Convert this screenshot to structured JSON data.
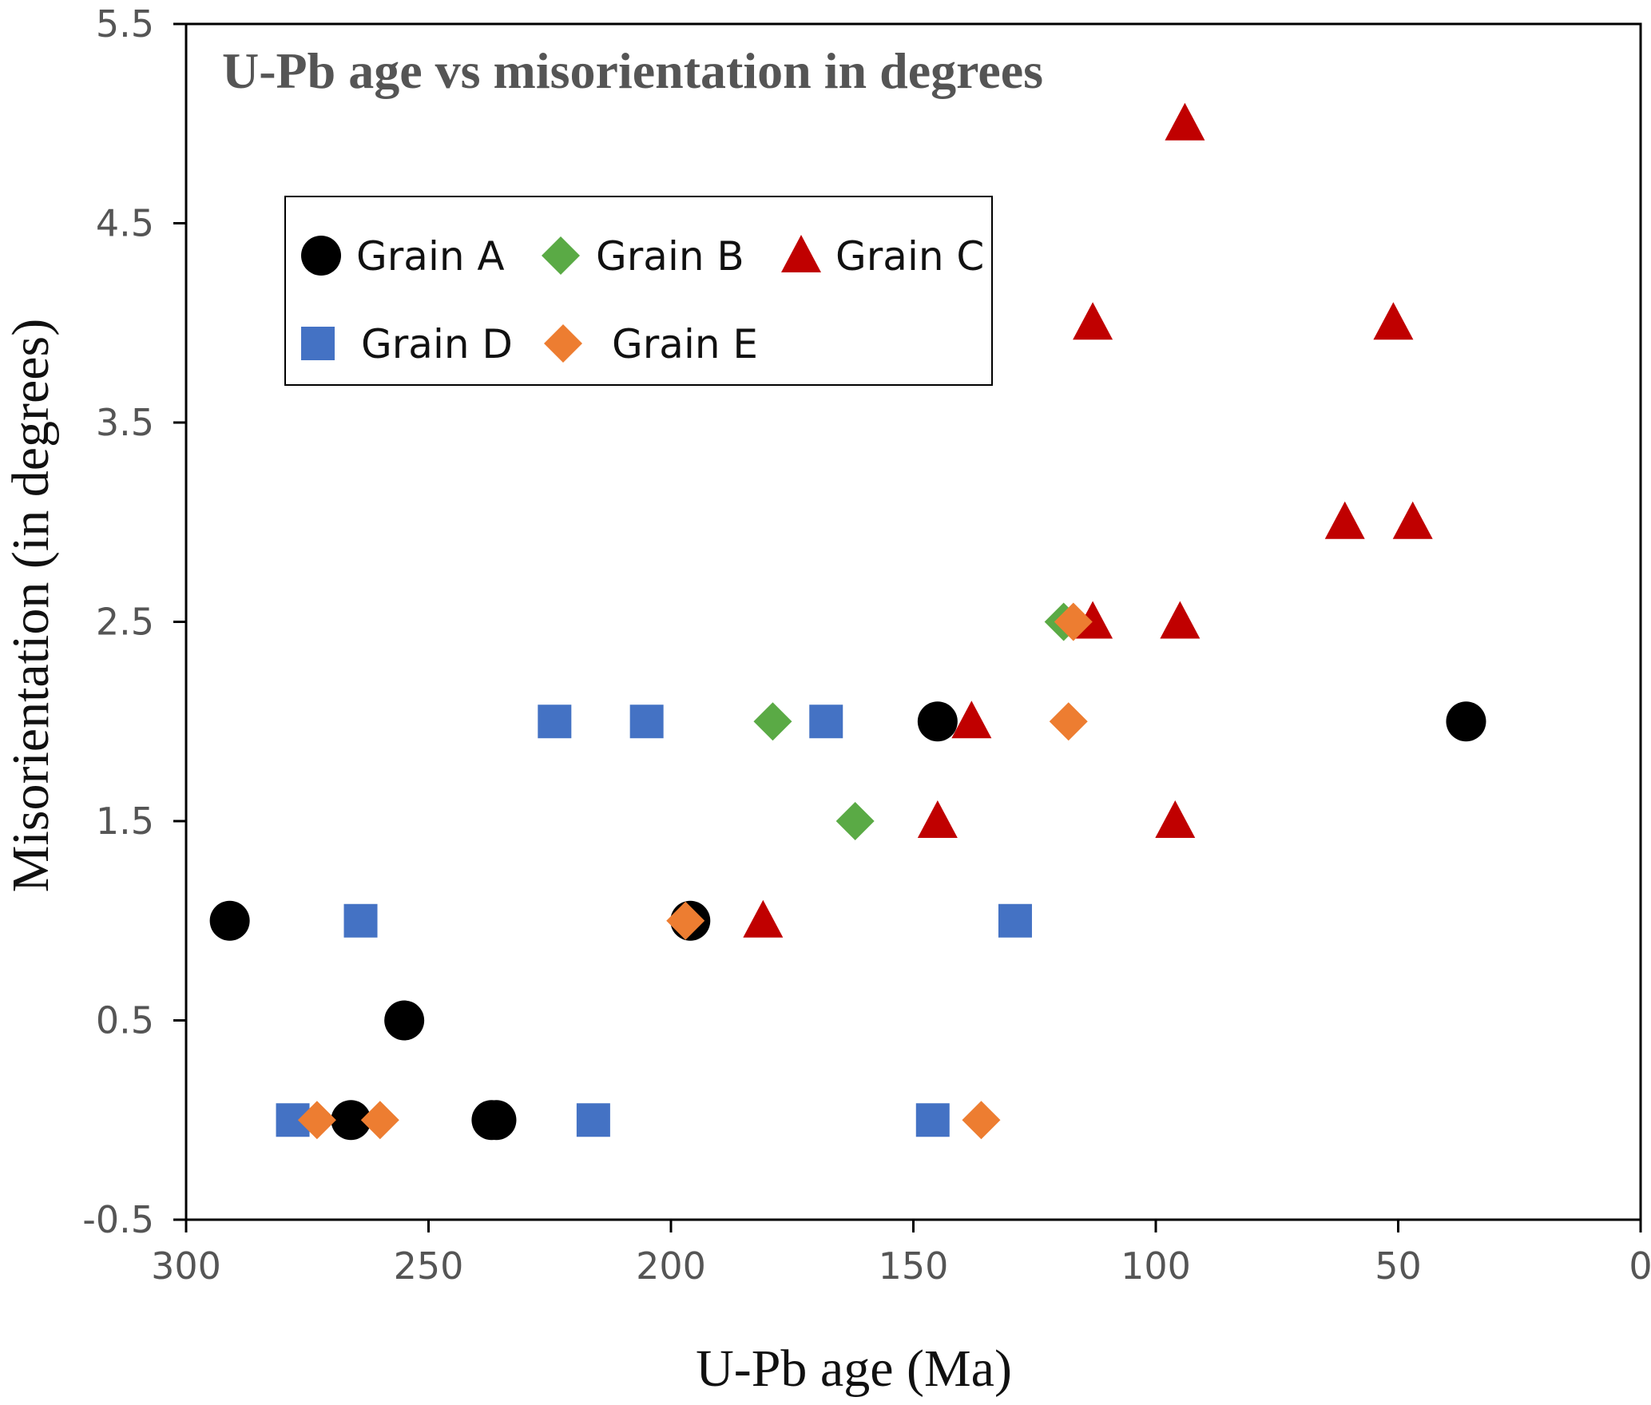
{
  "chart_data": {
    "type": "scatter",
    "title": "U-Pb age vs misorientation in degrees",
    "xlabel": "U-Pb age (Ma)",
    "ylabel": "Misorientation (in degrees)",
    "xlim": [
      300,
      0
    ],
    "ylim": [
      -0.5,
      5.5
    ],
    "x_reversed": true,
    "x_ticks": [
      300,
      250,
      200,
      150,
      100,
      50,
      0
    ],
    "y_ticks": [
      -0.5,
      0.5,
      1.5,
      2.5,
      3.5,
      4.5,
      5.5
    ],
    "x_tick_labels": [
      "300",
      "250",
      "200",
      "150",
      "100",
      "50",
      "0"
    ],
    "y_tick_labels": [
      "-0.5",
      "0.5",
      "1.5",
      "2.5",
      "3.5",
      "4.5",
      "5.5"
    ],
    "grid": false,
    "legend_position": "upper-left",
    "series": [
      {
        "name": "Grain A",
        "marker": "circle",
        "color": "#000000",
        "x": [
          291,
          255,
          266,
          237,
          236,
          196,
          145,
          36
        ],
        "y": [
          1,
          0.5,
          0,
          0,
          0,
          1,
          2,
          2
        ]
      },
      {
        "name": "Grain B",
        "marker": "diamond",
        "color": "#5aaa45",
        "x": [
          179,
          162,
          119
        ],
        "y": [
          2,
          1.5,
          2.5
        ]
      },
      {
        "name": "Grain C",
        "marker": "triangle",
        "color": "#c00000",
        "x": [
          94,
          113,
          51,
          61,
          47,
          113,
          95,
          138,
          145,
          96,
          181
        ],
        "y": [
          5,
          4,
          4,
          3,
          3,
          2.5,
          2.5,
          2,
          1.5,
          1.5,
          1
        ]
      },
      {
        "name": "Grain D",
        "marker": "square",
        "color": "#4472c4",
        "x": [
          224,
          205,
          168,
          264,
          129,
          278,
          216,
          146
        ],
        "y": [
          2,
          2,
          2,
          1,
          1,
          0,
          0,
          0
        ]
      },
      {
        "name": "Grain E",
        "marker": "diamond",
        "color": "#ed7d31",
        "x": [
          117,
          118,
          197,
          273,
          260,
          136
        ],
        "y": [
          2.5,
          2,
          1,
          0,
          0,
          0
        ]
      }
    ]
  }
}
